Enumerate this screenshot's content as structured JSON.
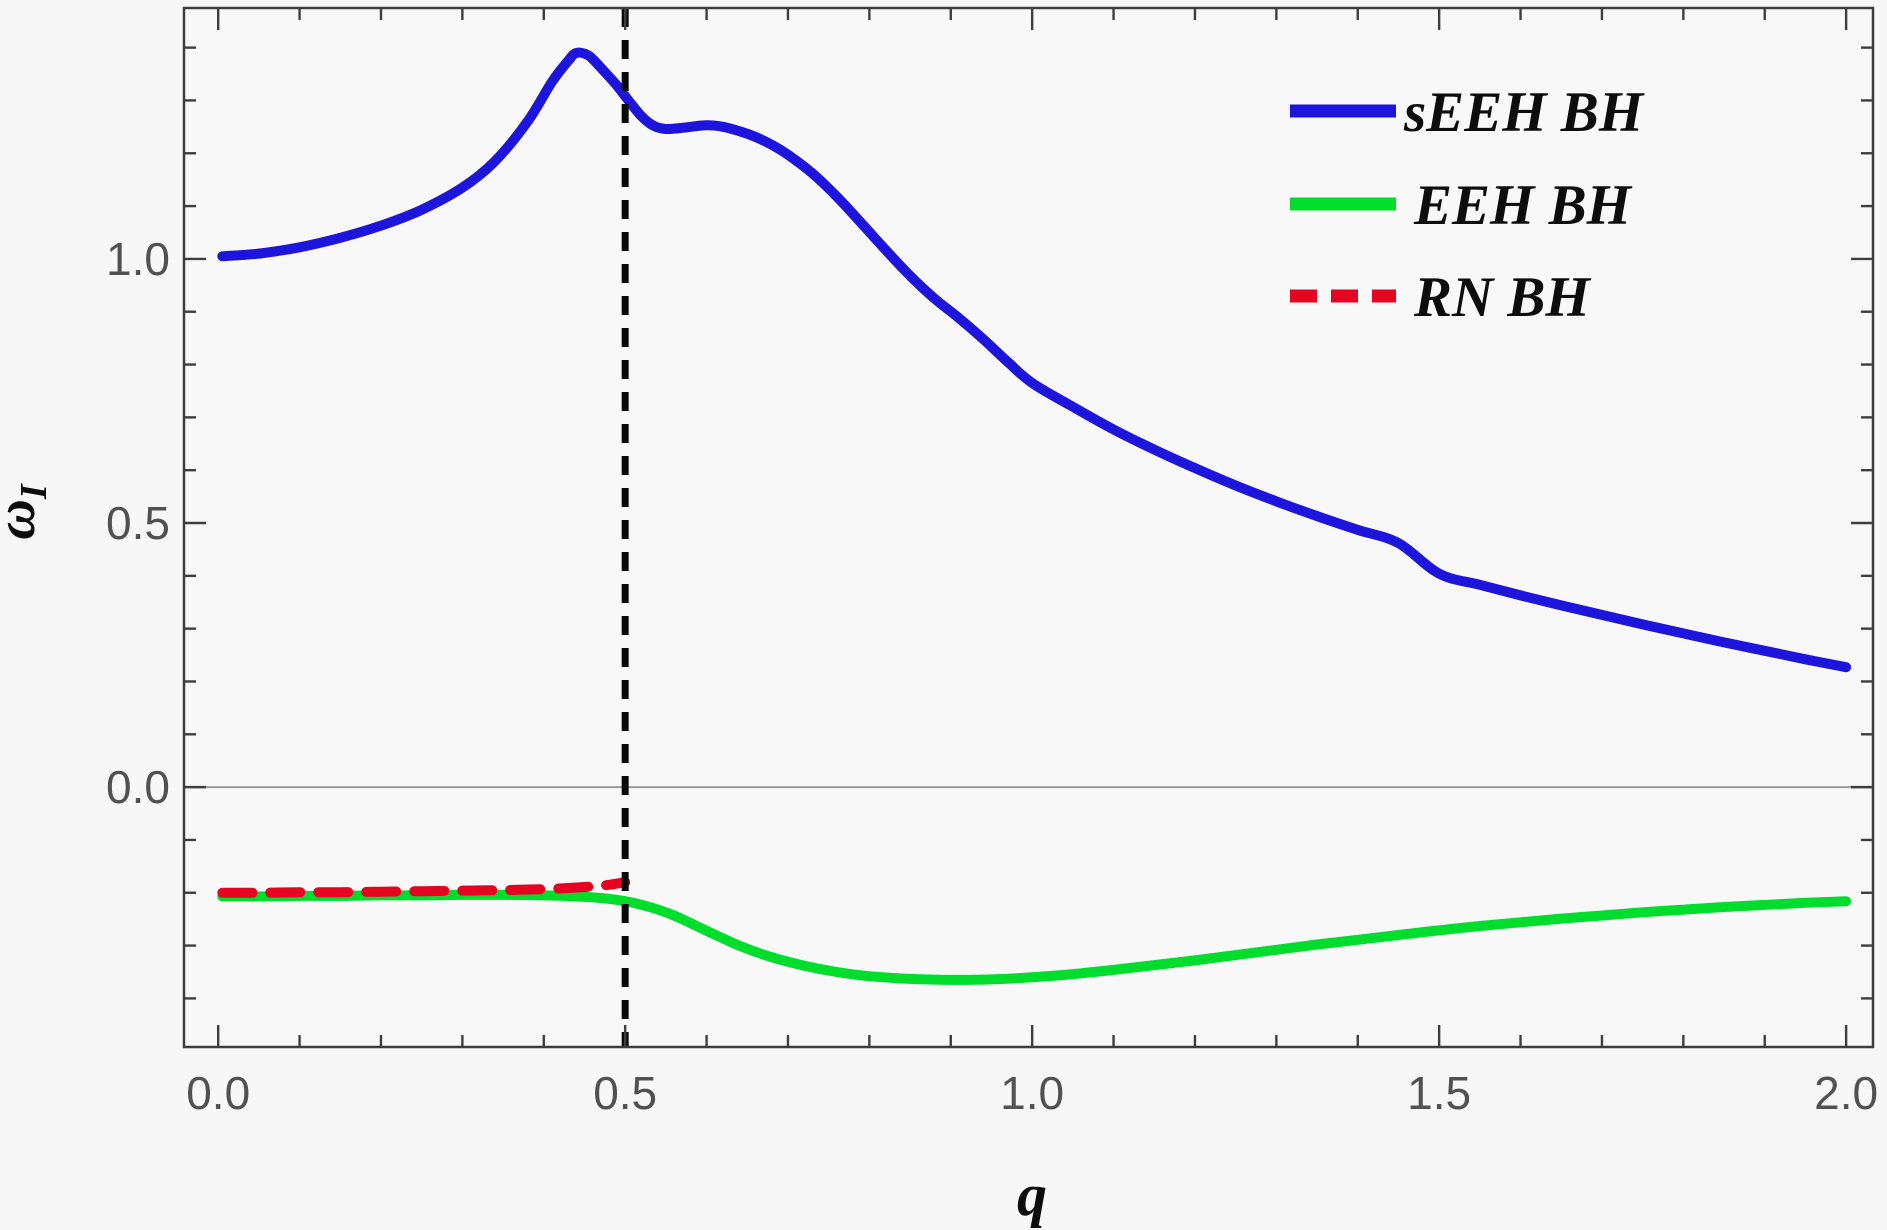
{
  "figure": {
    "background": "#f7f7f7",
    "frame_color": "#3e3e3e",
    "tick_color": "#3e3e3e",
    "tick_label_color": "#515151",
    "zero_line_color": "#9b9b9b",
    "marker_line_color": "#0a0a0a"
  },
  "axes": {
    "x_label": "q",
    "y_label_main": "ω",
    "y_label_sub": "I",
    "x_range": [
      -0.042,
      2.033
    ],
    "y_range": [
      -0.492,
      1.475
    ],
    "x_major_ticks": [
      0.0,
      0.5,
      1.0,
      1.5,
      2.0
    ],
    "x_major_labels": [
      "0.0",
      "0.5",
      "1.0",
      "1.5",
      "2.0"
    ],
    "x_minor_step": 0.1,
    "y_major_ticks": [
      0.0,
      0.5,
      1.0
    ],
    "y_major_labels": [
      "0.0",
      "0.5",
      "1.0"
    ],
    "y_minor_step": 0.1,
    "zero_gridline_y": 0.0,
    "vertical_marker_x": 0.5
  },
  "legend": {
    "items": [
      {
        "label": "sEEH BH",
        "color": "#1e15dd",
        "dashed": false
      },
      {
        "label": "EEH BH",
        "color": "#00dd2c",
        "dashed": false
      },
      {
        "label": "RN BH",
        "color": "#e50321",
        "dashed": true
      }
    ]
  },
  "chart_data": {
    "type": "line",
    "title": "",
    "xlabel": "q",
    "ylabel": "ω_I",
    "xlim": [
      -0.042,
      2.033
    ],
    "ylim": [
      -0.492,
      1.475
    ],
    "grid": "horizontal zero line only",
    "legend_position": "top-right inside",
    "annotations": [
      {
        "type": "vertical-dashed-line",
        "x": 0.5,
        "color": "black"
      }
    ],
    "series": [
      {
        "name": "sEEH BH",
        "color": "#1e15dd",
        "style": "solid",
        "width": 10,
        "points": [
          [
            0.005,
            1.005
          ],
          [
            0.05,
            1.01
          ],
          [
            0.1,
            1.022
          ],
          [
            0.15,
            1.04
          ],
          [
            0.2,
            1.063
          ],
          [
            0.25,
            1.093
          ],
          [
            0.3,
            1.135
          ],
          [
            0.34,
            1.185
          ],
          [
            0.38,
            1.26
          ],
          [
            0.41,
            1.335
          ],
          [
            0.43,
            1.375
          ],
          [
            0.44,
            1.39
          ],
          [
            0.455,
            1.385
          ],
          [
            0.47,
            1.362
          ],
          [
            0.49,
            1.328
          ],
          [
            0.5,
            1.308
          ],
          [
            0.52,
            1.27
          ],
          [
            0.535,
            1.252
          ],
          [
            0.55,
            1.246
          ],
          [
            0.57,
            1.248
          ],
          [
            0.6,
            1.253
          ],
          [
            0.62,
            1.25
          ],
          [
            0.64,
            1.242
          ],
          [
            0.66,
            1.231
          ],
          [
            0.68,
            1.216
          ],
          [
            0.7,
            1.197
          ],
          [
            0.73,
            1.162
          ],
          [
            0.76,
            1.118
          ],
          [
            0.79,
            1.068
          ],
          [
            0.82,
            1.017
          ],
          [
            0.85,
            0.968
          ],
          [
            0.88,
            0.925
          ],
          [
            0.91,
            0.888
          ],
          [
            0.94,
            0.848
          ],
          [
            0.97,
            0.805
          ],
          [
            1.0,
            0.765
          ],
          [
            1.05,
            0.72
          ],
          [
            1.1,
            0.677
          ],
          [
            1.15,
            0.639
          ],
          [
            1.2,
            0.604
          ],
          [
            1.25,
            0.571
          ],
          [
            1.3,
            0.541
          ],
          [
            1.35,
            0.513
          ],
          [
            1.4,
            0.487
          ],
          [
            1.45,
            0.462
          ],
          [
            1.5,
            0.404
          ],
          [
            1.55,
            0.383
          ],
          [
            1.6,
            0.363
          ],
          [
            1.65,
            0.344
          ],
          [
            1.7,
            0.326
          ],
          [
            1.75,
            0.308
          ],
          [
            1.8,
            0.291
          ],
          [
            1.85,
            0.274
          ],
          [
            1.9,
            0.258
          ],
          [
            1.95,
            0.242
          ],
          [
            2.0,
            0.227
          ]
        ]
      },
      {
        "name": "EEH BH",
        "color": "#00dd2c",
        "style": "solid",
        "width": 10,
        "points": [
          [
            0.005,
            -0.207
          ],
          [
            0.05,
            -0.207
          ],
          [
            0.1,
            -0.206
          ],
          [
            0.15,
            -0.206
          ],
          [
            0.2,
            -0.205
          ],
          [
            0.25,
            -0.205
          ],
          [
            0.3,
            -0.204
          ],
          [
            0.35,
            -0.204
          ],
          [
            0.4,
            -0.205
          ],
          [
            0.44,
            -0.207
          ],
          [
            0.47,
            -0.21
          ],
          [
            0.5,
            -0.216
          ],
          [
            0.53,
            -0.227
          ],
          [
            0.56,
            -0.243
          ],
          [
            0.6,
            -0.272
          ],
          [
            0.64,
            -0.3
          ],
          [
            0.68,
            -0.322
          ],
          [
            0.72,
            -0.338
          ],
          [
            0.76,
            -0.35
          ],
          [
            0.8,
            -0.358
          ],
          [
            0.85,
            -0.363
          ],
          [
            0.9,
            -0.365
          ],
          [
            0.95,
            -0.364
          ],
          [
            1.0,
            -0.36
          ],
          [
            1.05,
            -0.354
          ],
          [
            1.1,
            -0.346
          ],
          [
            1.15,
            -0.337
          ],
          [
            1.2,
            -0.328
          ],
          [
            1.25,
            -0.318
          ],
          [
            1.3,
            -0.308
          ],
          [
            1.35,
            -0.298
          ],
          [
            1.4,
            -0.289
          ],
          [
            1.45,
            -0.28
          ],
          [
            1.5,
            -0.271
          ],
          [
            1.55,
            -0.263
          ],
          [
            1.6,
            -0.256
          ],
          [
            1.65,
            -0.249
          ],
          [
            1.7,
            -0.243
          ],
          [
            1.75,
            -0.237
          ],
          [
            1.8,
            -0.232
          ],
          [
            1.85,
            -0.227
          ],
          [
            1.9,
            -0.223
          ],
          [
            1.95,
            -0.219
          ],
          [
            2.0,
            -0.216
          ]
        ]
      },
      {
        "name": "RN BH",
        "color": "#e50321",
        "style": "dashed",
        "width": 10,
        "points": [
          [
            0.005,
            -0.2
          ],
          [
            0.05,
            -0.2
          ],
          [
            0.1,
            -0.199
          ],
          [
            0.15,
            -0.199
          ],
          [
            0.2,
            -0.198
          ],
          [
            0.25,
            -0.197
          ],
          [
            0.3,
            -0.196
          ],
          [
            0.35,
            -0.195
          ],
          [
            0.4,
            -0.193
          ],
          [
            0.43,
            -0.191
          ],
          [
            0.46,
            -0.188
          ],
          [
            0.48,
            -0.185
          ],
          [
            0.5,
            -0.18
          ]
        ]
      }
    ]
  }
}
